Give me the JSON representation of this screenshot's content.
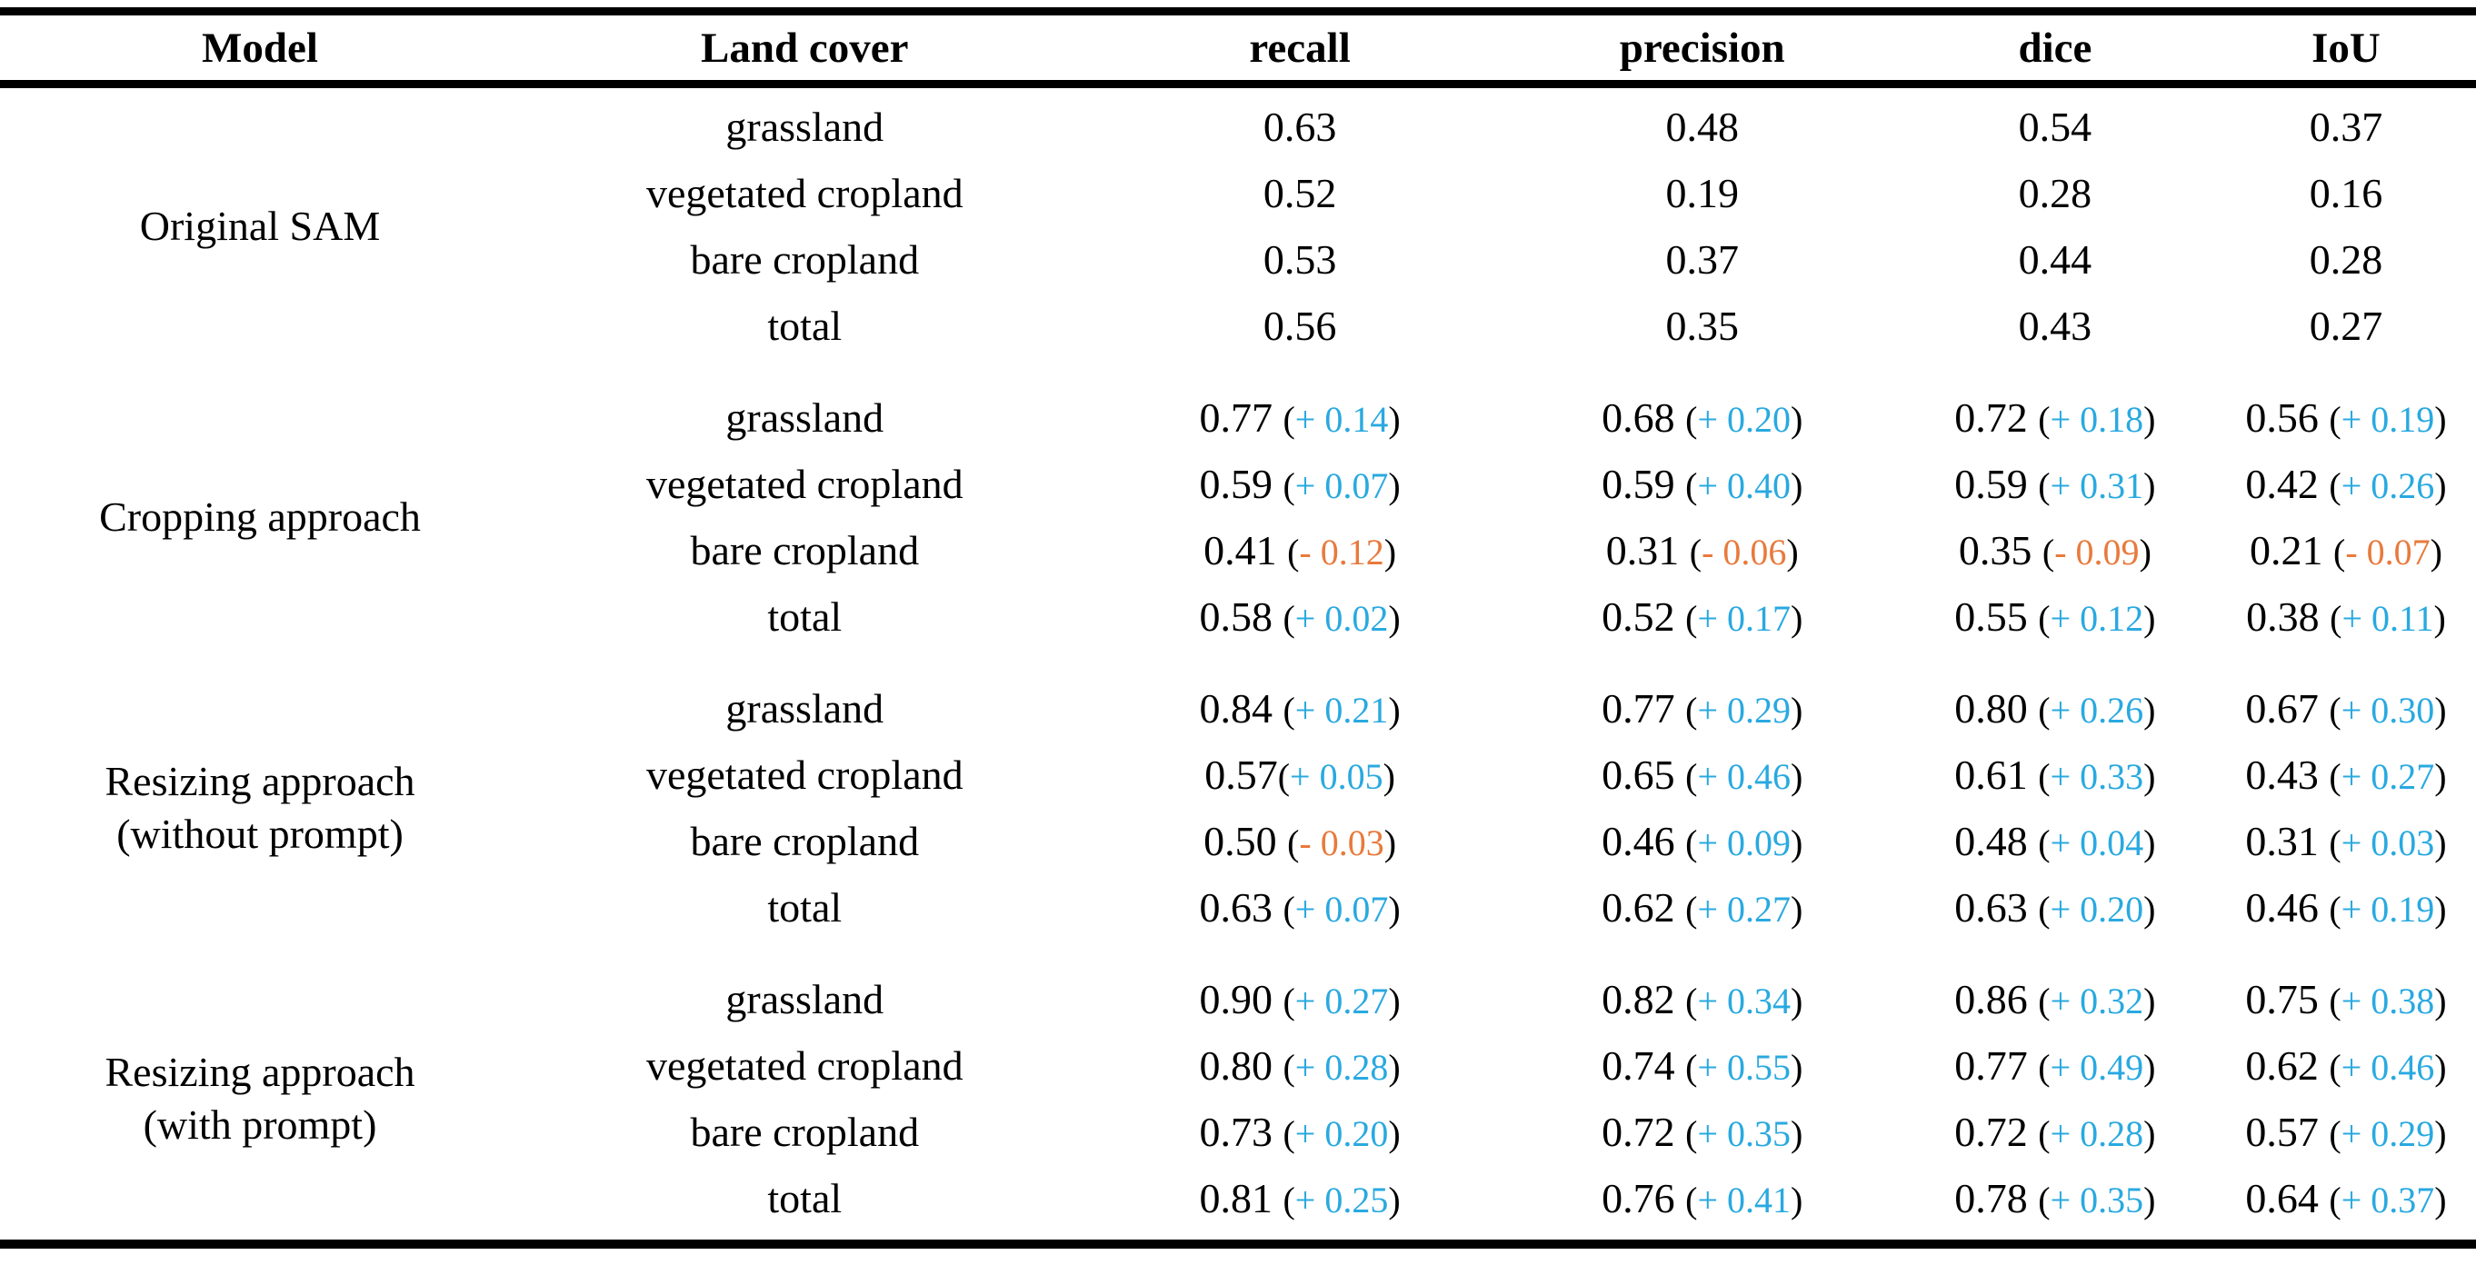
{
  "table": {
    "columns": [
      "Model",
      "Land cover",
      "recall",
      "precision",
      "dice",
      "IoU"
    ],
    "delta_colors": {
      "positive": "#29a9e0",
      "negative": "#e87a3c"
    },
    "delta_format": {
      "open": "(",
      "close": ")"
    },
    "groups": [
      {
        "model": "Original SAM",
        "rows": [
          {
            "land_cover": "grassland",
            "cells": [
              {
                "value": "0.63"
              },
              {
                "value": "0.48"
              },
              {
                "value": "0.54"
              },
              {
                "value": "0.37"
              }
            ]
          },
          {
            "land_cover": "vegetated cropland",
            "cells": [
              {
                "value": "0.52"
              },
              {
                "value": "0.19"
              },
              {
                "value": "0.28"
              },
              {
                "value": "0.16"
              }
            ]
          },
          {
            "land_cover": "bare cropland",
            "cells": [
              {
                "value": "0.53"
              },
              {
                "value": "0.37"
              },
              {
                "value": "0.44"
              },
              {
                "value": "0.28"
              }
            ]
          },
          {
            "land_cover": "total",
            "cells": [
              {
                "value": "0.56"
              },
              {
                "value": "0.35"
              },
              {
                "value": "0.43"
              },
              {
                "value": "0.27"
              }
            ]
          }
        ]
      },
      {
        "model": "Cropping approach",
        "rows": [
          {
            "land_cover": "grassland",
            "cells": [
              {
                "value": "0.77",
                "delta": "+ 0.14",
                "sign": "positive"
              },
              {
                "value": "0.68",
                "delta": "+ 0.20",
                "sign": "positive"
              },
              {
                "value": "0.72",
                "delta": "+ 0.18",
                "sign": "positive"
              },
              {
                "value": "0.56",
                "delta": "+ 0.19",
                "sign": "positive"
              }
            ]
          },
          {
            "land_cover": "vegetated cropland",
            "cells": [
              {
                "value": "0.59",
                "delta": "+ 0.07",
                "sign": "positive"
              },
              {
                "value": "0.59",
                "delta": "+ 0.40",
                "sign": "positive"
              },
              {
                "value": "0.59",
                "delta": "+ 0.31",
                "sign": "positive"
              },
              {
                "value": "0.42",
                "delta": "+ 0.26",
                "sign": "positive"
              }
            ]
          },
          {
            "land_cover": "bare cropland",
            "cells": [
              {
                "value": "0.41",
                "delta": "- 0.12",
                "sign": "negative"
              },
              {
                "value": "0.31",
                "delta": "- 0.06",
                "sign": "negative"
              },
              {
                "value": "0.35",
                "delta": "- 0.09",
                "sign": "negative"
              },
              {
                "value": "0.21",
                "delta": "- 0.07",
                "sign": "negative"
              }
            ]
          },
          {
            "land_cover": "total",
            "cells": [
              {
                "value": "0.58",
                "delta": "+ 0.02",
                "sign": "positive"
              },
              {
                "value": "0.52",
                "delta": "+ 0.17",
                "sign": "positive"
              },
              {
                "value": "0.55",
                "delta": "+ 0.12",
                "sign": "positive"
              },
              {
                "value": "0.38",
                "delta": "+ 0.11",
                "sign": "positive"
              }
            ]
          }
        ]
      },
      {
        "model": "Resizing approach",
        "model_line2": "(without prompt)",
        "rows": [
          {
            "land_cover": "grassland",
            "cells": [
              {
                "value": "0.84",
                "delta": "+ 0.21",
                "sign": "positive"
              },
              {
                "value": "0.77",
                "delta": "+ 0.29",
                "sign": "positive"
              },
              {
                "value": "0.80",
                "delta": "+ 0.26",
                "sign": "positive"
              },
              {
                "value": "0.67",
                "delta": "+ 0.30",
                "sign": "positive"
              }
            ]
          },
          {
            "land_cover": "vegetated cropland",
            "cells": [
              {
                "value": "0.57",
                "delta": "+ 0.05",
                "sign": "positive",
                "nospace": true
              },
              {
                "value": "0.65",
                "delta": "+ 0.46",
                "sign": "positive"
              },
              {
                "value": "0.61",
                "delta": "+ 0.33",
                "sign": "positive"
              },
              {
                "value": "0.43",
                "delta": "+ 0.27",
                "sign": "positive"
              }
            ]
          },
          {
            "land_cover": "bare cropland",
            "cells": [
              {
                "value": "0.50",
                "delta": "- 0.03",
                "sign": "negative"
              },
              {
                "value": "0.46",
                "delta": "+ 0.09",
                "sign": "positive"
              },
              {
                "value": "0.48",
                "delta": "+ 0.04",
                "sign": "positive"
              },
              {
                "value": "0.31",
                "delta": "+ 0.03",
                "sign": "positive"
              }
            ]
          },
          {
            "land_cover": "total",
            "cells": [
              {
                "value": "0.63",
                "delta": "+ 0.07",
                "sign": "positive"
              },
              {
                "value": "0.62",
                "delta": "+ 0.27",
                "sign": "positive"
              },
              {
                "value": "0.63",
                "delta": "+ 0.20",
                "sign": "positive"
              },
              {
                "value": "0.46",
                "delta": "+ 0.19",
                "sign": "positive"
              }
            ]
          }
        ]
      },
      {
        "model": "Resizing approach",
        "model_line2": "(with prompt)",
        "rows": [
          {
            "land_cover": "grassland",
            "cells": [
              {
                "value": "0.90",
                "delta": "+ 0.27",
                "sign": "positive"
              },
              {
                "value": "0.82",
                "delta": "+ 0.34",
                "sign": "positive"
              },
              {
                "value": "0.86",
                "delta": "+ 0.32",
                "sign": "positive"
              },
              {
                "value": "0.75",
                "delta": "+ 0.38",
                "sign": "positive"
              }
            ]
          },
          {
            "land_cover": "vegetated cropland",
            "cells": [
              {
                "value": "0.80",
                "delta": "+ 0.28",
                "sign": "positive"
              },
              {
                "value": "0.74",
                "delta": "+ 0.55",
                "sign": "positive"
              },
              {
                "value": "0.77",
                "delta": "+ 0.49",
                "sign": "positive"
              },
              {
                "value": "0.62",
                "delta": "+ 0.46",
                "sign": "positive"
              }
            ]
          },
          {
            "land_cover": "bare cropland",
            "cells": [
              {
                "value": "0.73",
                "delta": "+ 0.20",
                "sign": "positive"
              },
              {
                "value": "0.72",
                "delta": "+ 0.35",
                "sign": "positive"
              },
              {
                "value": "0.72",
                "delta": "+ 0.28",
                "sign": "positive"
              },
              {
                "value": "0.57",
                "delta": "+ 0.29",
                "sign": "positive"
              }
            ]
          },
          {
            "land_cover": "total",
            "cells": [
              {
                "value": "0.81",
                "delta": "+ 0.25",
                "sign": "positive"
              },
              {
                "value": "0.76",
                "delta": "+ 0.41",
                "sign": "positive"
              },
              {
                "value": "0.78",
                "delta": "+ 0.35",
                "sign": "positive"
              },
              {
                "value": "0.64",
                "delta": "+ 0.37",
                "sign": "positive"
              }
            ]
          }
        ]
      }
    ]
  },
  "chart_data": {
    "type": "table",
    "columns": [
      "Model",
      "Land cover",
      "recall",
      "precision",
      "dice",
      "IoU"
    ],
    "rows": [
      [
        "Original SAM",
        "grassland",
        "0.63",
        "0.48",
        "0.54",
        "0.37"
      ],
      [
        "Original SAM",
        "vegetated cropland",
        "0.52",
        "0.19",
        "0.28",
        "0.16"
      ],
      [
        "Original SAM",
        "bare cropland",
        "0.53",
        "0.37",
        "0.44",
        "0.28"
      ],
      [
        "Original SAM",
        "total",
        "0.56",
        "0.35",
        "0.43",
        "0.27"
      ],
      [
        "Cropping approach",
        "grassland",
        "0.77 (+ 0.14)",
        "0.68 (+ 0.20)",
        "0.72 (+ 0.18)",
        "0.56 (+ 0.19)"
      ],
      [
        "Cropping approach",
        "vegetated cropland",
        "0.59 (+ 0.07)",
        "0.59 (+ 0.40)",
        "0.59 (+ 0.31)",
        "0.42 (+ 0.26)"
      ],
      [
        "Cropping approach",
        "bare cropland",
        "0.41 (- 0.12)",
        "0.31 (- 0.06)",
        "0.35 (- 0.09)",
        "0.21 (- 0.07)"
      ],
      [
        "Cropping approach",
        "total",
        "0.58 (+ 0.02)",
        "0.52 (+ 0.17)",
        "0.55 (+ 0.12)",
        "0.38 (+ 0.11)"
      ],
      [
        "Resizing approach (without prompt)",
        "grassland",
        "0.84 (+ 0.21)",
        "0.77 (+ 0.29)",
        "0.80 (+ 0.26)",
        "0.67 (+ 0.30)"
      ],
      [
        "Resizing approach (without prompt)",
        "vegetated cropland",
        "0.57(+ 0.05)",
        "0.65 (+ 0.46)",
        "0.61 (+ 0.33)",
        "0.43 (+ 0.27)"
      ],
      [
        "Resizing approach (without prompt)",
        "bare cropland",
        "0.50 (- 0.03)",
        "0.46 (+ 0.09)",
        "0.48 (+ 0.04)",
        "0.31 (+ 0.03)"
      ],
      [
        "Resizing approach (without prompt)",
        "total",
        "0.63 (+ 0.07)",
        "0.62 (+ 0.27)",
        "0.63 (+ 0.20)",
        "0.46 (+ 0.19)"
      ],
      [
        "Resizing approach (with prompt)",
        "grassland",
        "0.90 (+ 0.27)",
        "0.82 (+ 0.34)",
        "0.86 (+ 0.32)",
        "0.75 (+ 0.38)"
      ],
      [
        "Resizing approach (with prompt)",
        "vegetated cropland",
        "0.80 (+ 0.28)",
        "0.74 (+ 0.55)",
        "0.77 (+ 0.49)",
        "0.62 (+ 0.46)"
      ],
      [
        "Resizing approach (with prompt)",
        "bare cropland",
        "0.73 (+ 0.20)",
        "0.72 (+ 0.35)",
        "0.72 (+ 0.28)",
        "0.57 (+ 0.29)"
      ],
      [
        "Resizing approach (with prompt)",
        "total",
        "0.81 (+ 0.25)",
        "0.76 (+ 0.41)",
        "0.78 (+ 0.35)",
        "0.64 (+ 0.37)"
      ]
    ]
  }
}
